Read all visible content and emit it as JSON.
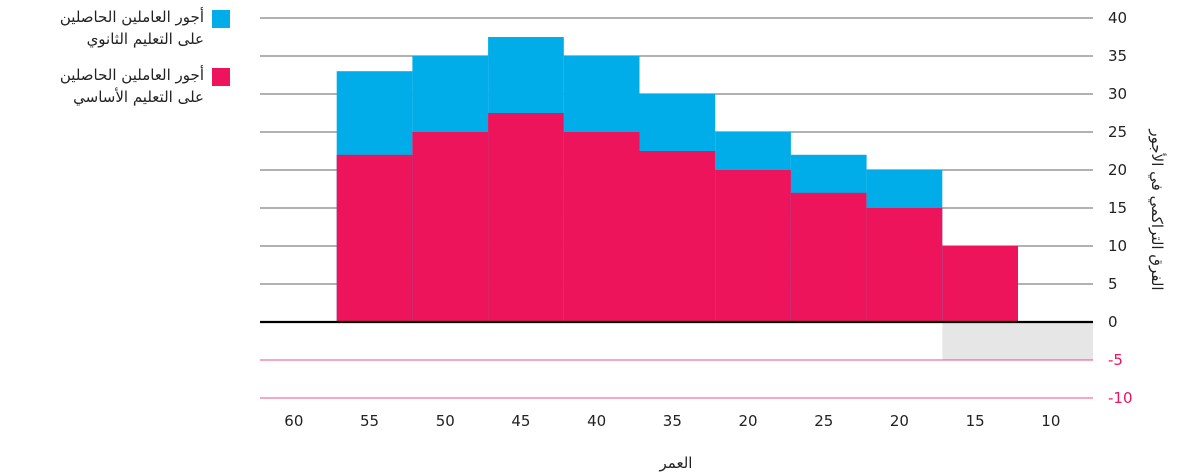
{
  "colors": {
    "secondary": "#00ade8",
    "basic": "#ed145b",
    "negative_grid": "#ed145b",
    "shade": "#e6e6e7",
    "grid": "#333333",
    "text": "#222222"
  },
  "legend": [
    {
      "label": "أجور العاملين الحاصلين\nعلى التعليم الثانوي",
      "color": "#00ade8"
    },
    {
      "label": "أجور العاملين الحاصلين\nعلى التعليم الأساسي",
      "color": "#ed145b"
    }
  ],
  "chart_data": {
    "type": "bar",
    "title": "",
    "xlabel": "العمر",
    "ylabel": "الفرق التراكمي في الأجور",
    "categories": [
      "60",
      "55",
      "50",
      "45",
      "40",
      "35",
      "20",
      "25",
      "20",
      "15",
      "10"
    ],
    "series": [
      {
        "name": "أجور العاملين الحاصلين على التعليم الأساسي",
        "values": [
          0,
          22,
          25,
          27.5,
          25,
          22.5,
          20,
          17,
          15,
          10,
          0
        ]
      },
      {
        "name": "أجور العاملين الحاصلين على التعليم الثانوي",
        "values": [
          0,
          33,
          35,
          37.5,
          35,
          30,
          25,
          22,
          20,
          10,
          0
        ]
      }
    ],
    "ylim": [
      -10,
      40
    ],
    "yticks": [
      40,
      35,
      30,
      25,
      20,
      15,
      10,
      5,
      0,
      -5,
      -10
    ],
    "ytick_labels": [
      "40",
      "35",
      "30",
      "25",
      "20",
      "15",
      "10",
      "5",
      "0",
      "-5",
      "-10"
    ],
    "shaded_region": {
      "from_category": "15",
      "to_category": "10",
      "y_from": -5,
      "y_to": 0
    },
    "legend_position": "top-left",
    "yaxis_side": "right"
  }
}
